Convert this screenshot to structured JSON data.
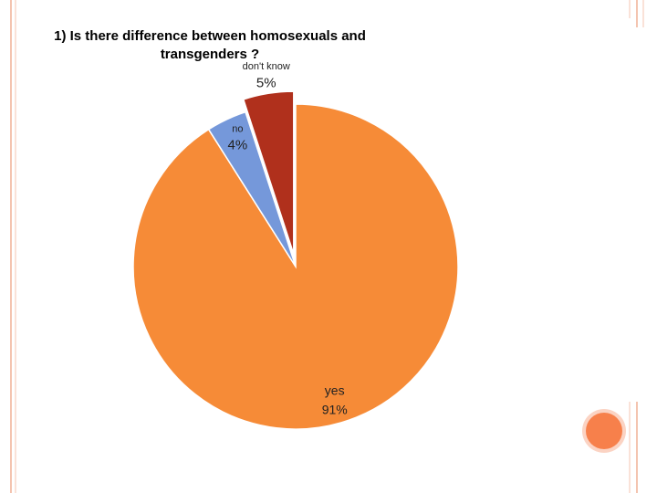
{
  "chart_data": {
    "type": "pie",
    "title": "1) Is there difference between homosexuals and transgenders ?",
    "categories": [
      "yes",
      "no",
      "don't know"
    ],
    "values": [
      91,
      4,
      5
    ],
    "value_labels": [
      "91%",
      "4%",
      "5%"
    ],
    "colors": [
      "#f68b37",
      "#7598da",
      "#b0301c"
    ],
    "exploded": [
      false,
      false,
      true
    ]
  }
}
